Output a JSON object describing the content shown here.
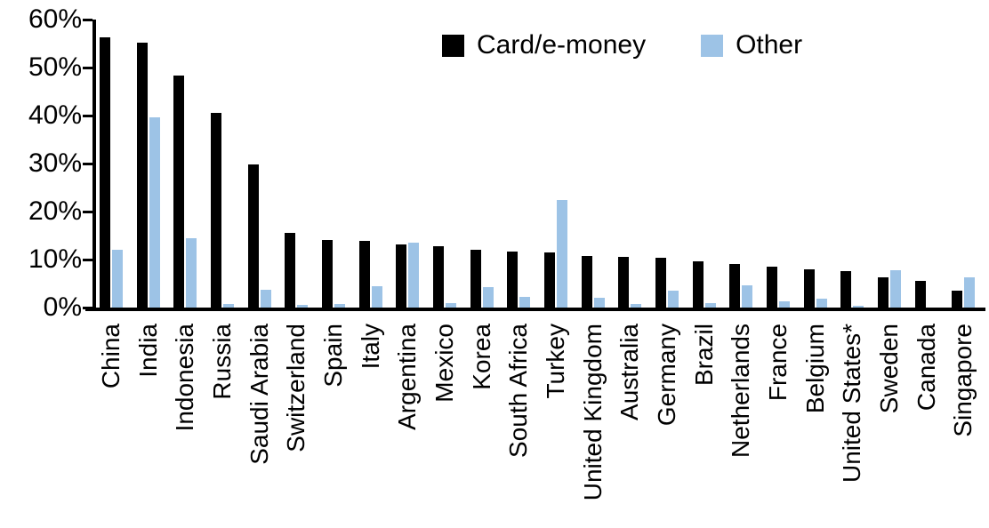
{
  "legend": {
    "series1_label": "Card/e-money",
    "series2_label": "Other"
  },
  "colors": {
    "card": "#000000",
    "other": "#9DC3E6",
    "axis": "#000000",
    "background": "#FFFFFF"
  },
  "chart_data": {
    "type": "bar",
    "title": "",
    "xlabel": "",
    "ylabel": "",
    "ylim": [
      0,
      60
    ],
    "ytick_interval": 10,
    "yticks": [
      "0%",
      "10%",
      "20%",
      "30%",
      "40%",
      "50%",
      "60%"
    ],
    "grid": false,
    "legend_position": "top-center",
    "categories": [
      "China",
      "India",
      "Indonesia",
      "Russia",
      "Saudi Arabia",
      "Switzerland",
      "Spain",
      "Italy",
      "Argentina",
      "Mexico",
      "Korea",
      "South Africa",
      "Turkey",
      "United Kingdom",
      "Australia",
      "Germany",
      "Brazil",
      "Netherlands",
      "France",
      "Belgium",
      "United States*",
      "Sweden",
      "Canada",
      "Singapore"
    ],
    "series": [
      {
        "name": "Card/e-money",
        "color": "#000000",
        "values": [
          56.3,
          55.1,
          48.3,
          40.6,
          29.8,
          15.5,
          14.1,
          13.9,
          13.2,
          12.7,
          12.0,
          11.6,
          11.4,
          10.8,
          10.6,
          10.3,
          9.7,
          9.0,
          8.5,
          8.0,
          7.6,
          6.3,
          5.5,
          3.6
        ]
      },
      {
        "name": "Other",
        "color": "#9DC3E6",
        "values": [
          12.0,
          39.7,
          14.4,
          0.8,
          3.7,
          0.5,
          0.7,
          4.4,
          13.6,
          0.9,
          4.2,
          2.2,
          22.4,
          2.0,
          0.7,
          3.6,
          1.0,
          4.6,
          1.3,
          1.8,
          0.3,
          7.8,
          0.0,
          6.3
        ]
      }
    ]
  }
}
